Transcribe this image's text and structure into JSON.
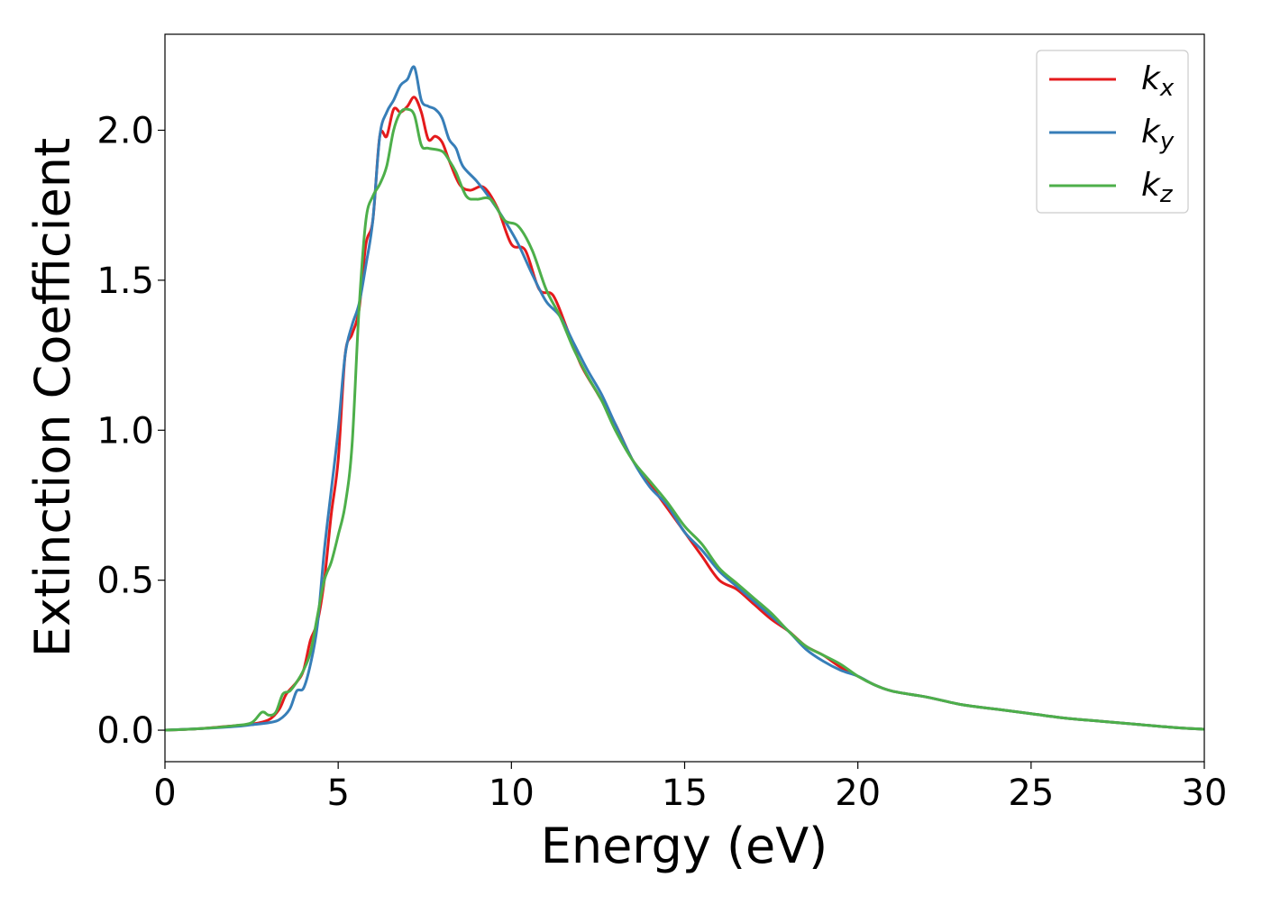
{
  "chart_data": {
    "type": "line",
    "title": "",
    "xlabel": "Energy (eV)",
    "ylabel": "Extinction Coefficient",
    "xlim": [
      0,
      30
    ],
    "ylim": [
      -0.105,
      2.32
    ],
    "xticks": [
      0,
      5,
      10,
      15,
      20,
      25,
      30
    ],
    "xtick_labels": [
      "0",
      "5",
      "10",
      "15",
      "20",
      "25",
      "30"
    ],
    "yticks": [
      0.0,
      0.5,
      1.0,
      1.5,
      2.0
    ],
    "ytick_labels": [
      "0.0",
      "0.5",
      "1.0",
      "1.5",
      "2.0"
    ],
    "grid": false,
    "legend_placement": "top-right",
    "series": [
      {
        "name": "k",
        "subscript": "x",
        "color": "#e41a1c",
        "x": [
          0,
          1,
          2,
          2.5,
          3,
          3.3,
          3.5,
          3.8,
          4.0,
          4.2,
          4.4,
          4.6,
          4.8,
          5.0,
          5.2,
          5.4,
          5.6,
          5.8,
          6.0,
          6.2,
          6.4,
          6.6,
          6.8,
          7.0,
          7.2,
          7.4,
          7.6,
          7.8,
          8.0,
          8.2,
          8.5,
          8.8,
          9.2,
          9.6,
          10,
          10.4,
          10.8,
          11.2,
          11.6,
          12,
          12.5,
          13,
          13.5,
          14,
          14.5,
          15,
          15.5,
          16,
          16.5,
          17,
          17.5,
          18,
          18.5,
          19,
          19.5,
          20,
          20.5,
          21,
          22,
          23,
          24,
          25,
          26,
          27,
          28,
          29,
          30
        ],
        "y": [
          0,
          0.005,
          0.015,
          0.02,
          0.035,
          0.07,
          0.12,
          0.16,
          0.2,
          0.3,
          0.36,
          0.5,
          0.72,
          0.9,
          1.25,
          1.32,
          1.4,
          1.62,
          1.7,
          1.98,
          1.98,
          2.07,
          2.06,
          2.08,
          2.11,
          2.06,
          1.97,
          1.98,
          1.96,
          1.9,
          1.82,
          1.8,
          1.81,
          1.74,
          1.62,
          1.6,
          1.47,
          1.45,
          1.34,
          1.22,
          1.12,
          1.02,
          0.9,
          0.82,
          0.74,
          0.66,
          0.58,
          0.5,
          0.47,
          0.42,
          0.37,
          0.33,
          0.28,
          0.25,
          0.21,
          0.18,
          0.15,
          0.13,
          0.11,
          0.085,
          0.07,
          0.055,
          0.04,
          0.03,
          0.02,
          0.01,
          0.003
        ]
      },
      {
        "name": "k",
        "subscript": "y",
        "color": "#377eb8",
        "x": [
          0,
          1,
          2,
          2.5,
          3,
          3.3,
          3.6,
          3.8,
          4.0,
          4.2,
          4.4,
          4.6,
          4.8,
          5.0,
          5.2,
          5.4,
          5.6,
          5.8,
          6.0,
          6.2,
          6.4,
          6.6,
          6.8,
          7.0,
          7.2,
          7.4,
          7.6,
          7.8,
          8.0,
          8.2,
          8.4,
          8.6,
          9.0,
          9.4,
          9.8,
          10.2,
          10.6,
          11,
          11.4,
          11.8,
          12.2,
          12.6,
          13,
          13.5,
          14,
          14.5,
          15,
          15.5,
          16,
          16.5,
          17,
          17.5,
          18,
          18.5,
          19,
          19.5,
          20,
          20.5,
          21,
          22,
          23,
          24,
          25,
          26,
          27,
          28,
          29,
          30
        ],
        "y": [
          0,
          0.005,
          0.012,
          0.018,
          0.025,
          0.035,
          0.07,
          0.13,
          0.14,
          0.22,
          0.35,
          0.6,
          0.8,
          1.0,
          1.25,
          1.35,
          1.42,
          1.55,
          1.7,
          1.98,
          2.06,
          2.1,
          2.15,
          2.17,
          2.21,
          2.1,
          2.08,
          2.07,
          2.04,
          1.97,
          1.94,
          1.88,
          1.83,
          1.77,
          1.7,
          1.62,
          1.52,
          1.43,
          1.38,
          1.29,
          1.2,
          1.12,
          1.02,
          0.9,
          0.81,
          0.75,
          0.66,
          0.6,
          0.53,
          0.48,
          0.43,
          0.38,
          0.33,
          0.27,
          0.23,
          0.2,
          0.18,
          0.15,
          0.13,
          0.11,
          0.085,
          0.07,
          0.055,
          0.04,
          0.03,
          0.02,
          0.01,
          0.003
        ]
      },
      {
        "name": "k",
        "subscript": "z",
        "color": "#4daf4a",
        "x": [
          0,
          1,
          2,
          2.5,
          2.8,
          3.0,
          3.2,
          3.4,
          3.6,
          3.8,
          4.0,
          4.2,
          4.4,
          4.6,
          4.8,
          5.0,
          5.2,
          5.4,
          5.6,
          5.8,
          6.0,
          6.2,
          6.4,
          6.6,
          6.8,
          7.0,
          7.2,
          7.4,
          7.6,
          8.0,
          8.2,
          8.4,
          8.7,
          9.0,
          9.4,
          9.8,
          10.2,
          10.6,
          11,
          11.4,
          11.8,
          12.2,
          12.6,
          13,
          13.5,
          14,
          14.5,
          15,
          15.5,
          16,
          16.5,
          17,
          17.5,
          18,
          18.5,
          19,
          19.5,
          20,
          20.5,
          21,
          22,
          23,
          24,
          25,
          26,
          27,
          28,
          29,
          30
        ],
        "y": [
          0,
          0.005,
          0.015,
          0.025,
          0.06,
          0.05,
          0.06,
          0.12,
          0.13,
          0.16,
          0.2,
          0.26,
          0.38,
          0.5,
          0.56,
          0.65,
          0.75,
          0.95,
          1.4,
          1.7,
          1.78,
          1.82,
          1.88,
          2.0,
          2.06,
          2.07,
          2.05,
          1.95,
          1.94,
          1.93,
          1.9,
          1.86,
          1.78,
          1.77,
          1.77,
          1.7,
          1.68,
          1.6,
          1.47,
          1.38,
          1.27,
          1.18,
          1.1,
          1.0,
          0.9,
          0.83,
          0.76,
          0.68,
          0.62,
          0.54,
          0.49,
          0.44,
          0.39,
          0.33,
          0.28,
          0.25,
          0.22,
          0.18,
          0.15,
          0.13,
          0.11,
          0.085,
          0.07,
          0.055,
          0.04,
          0.03,
          0.02,
          0.01,
          0.003
        ]
      }
    ]
  }
}
